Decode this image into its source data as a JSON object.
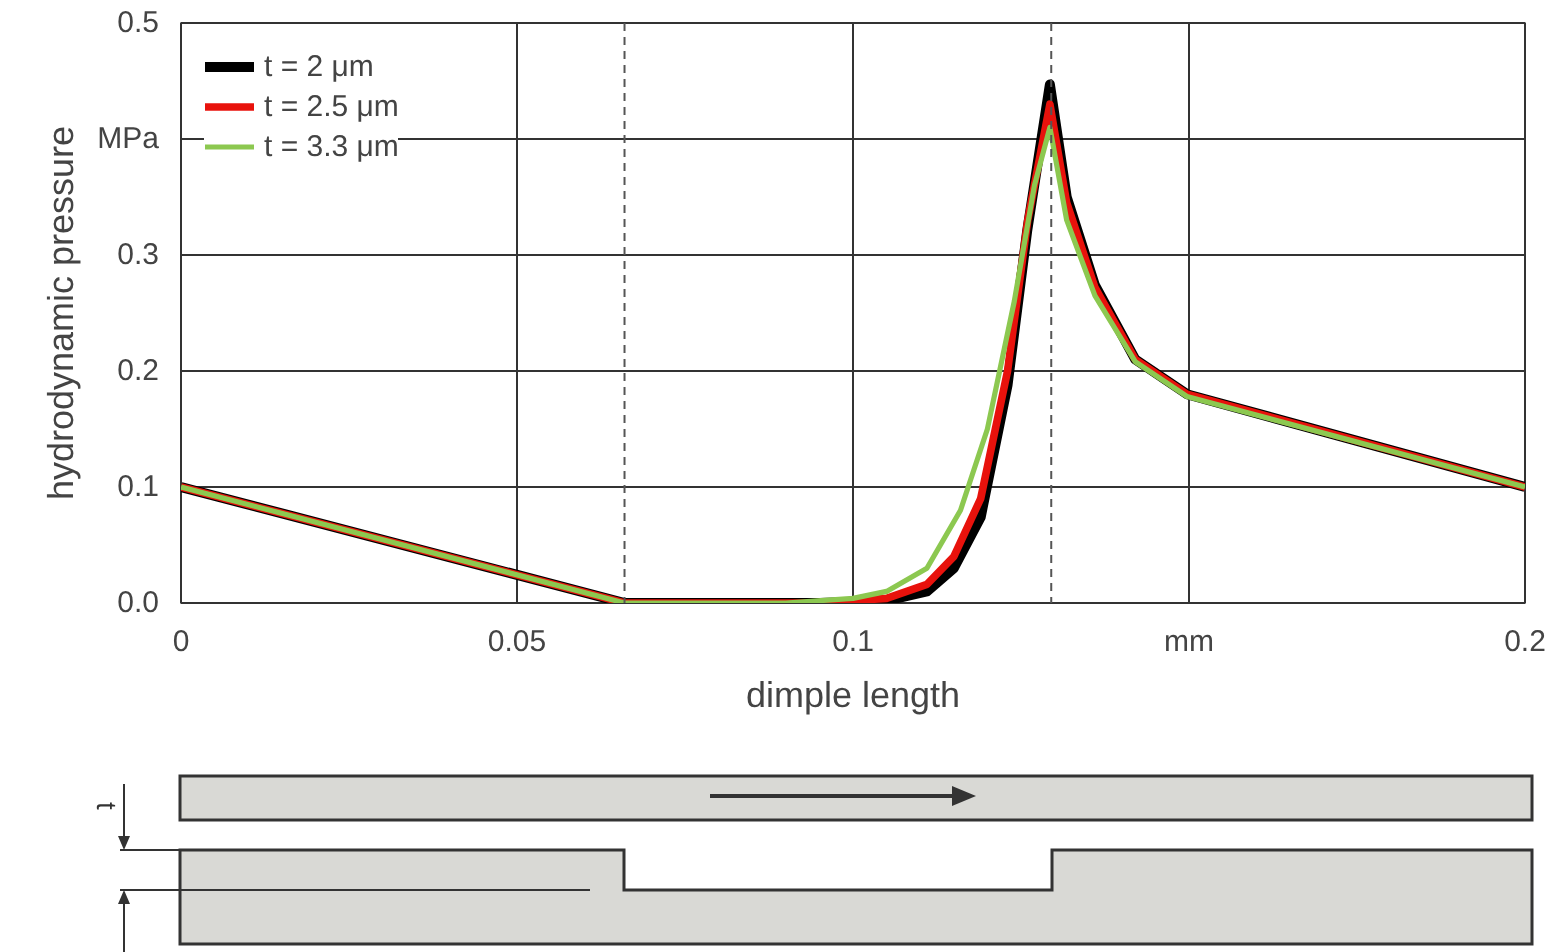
{
  "chart_data": {
    "type": "line",
    "xlabel": "dimple length",
    "ylabel": "hydrodynamic pressure",
    "xlim": [
      0,
      0.2
    ],
    "ylim": [
      0,
      0.5
    ],
    "xticks": [
      0,
      0.05,
      0.1,
      {
        "value": 0.15,
        "label": "mm"
      },
      0.2
    ],
    "yticks": [
      {
        "value": 0,
        "label": "0.0"
      },
      0.1,
      0.2,
      0.3,
      {
        "value": 0.4,
        "label": "MPa"
      },
      0.5
    ],
    "grid": true,
    "legend": "top left",
    "line_style": "solid",
    "marker": "none",
    "ref_lines": [
      {
        "axis": "x",
        "value": 0.066,
        "line_style": "dashed",
        "color": "#555555"
      },
      {
        "axis": "x",
        "value": 0.1295,
        "line_style": "dashed",
        "color": "#555555"
      }
    ],
    "annotations": [
      "t"
    ],
    "series": [
      {
        "name": "t = 2 μm",
        "color": "#000000",
        "x": [
          0,
          0.066,
          0.095,
          0.105,
          0.111,
          0.115,
          0.119,
          0.123,
          0.1259,
          0.1293,
          0.1318,
          0.136,
          0.142,
          0.1497,
          0.2
        ],
        "values": [
          0.1,
          0,
          0,
          0.002,
          0.01,
          0.03,
          0.074,
          0.188,
          0.32,
          0.447,
          0.35,
          0.274,
          0.21,
          0.18,
          0.1
        ]
      },
      {
        "name": "t = 2.5 μm",
        "color": "#e8120c",
        "x": [
          0,
          0.066,
          0.095,
          0.105,
          0.111,
          0.115,
          0.119,
          0.123,
          0.126,
          0.1293,
          0.1318,
          0.136,
          0.142,
          0.1497,
          0.2
        ],
        "values": [
          0.1,
          0,
          0,
          0.004,
          0.016,
          0.04,
          0.09,
          0.2,
          0.33,
          0.43,
          0.345,
          0.272,
          0.21,
          0.18,
          0.1
        ]
      },
      {
        "name": "t = 3.3 μm",
        "color": "#8cc850",
        "x": [
          0,
          0.066,
          0.09,
          0.1,
          0.105,
          0.111,
          0.116,
          0.12,
          0.124,
          0.127,
          0.1293,
          0.1318,
          0.136,
          0.142,
          0.1497,
          0.2
        ],
        "values": [
          0.1,
          0,
          0,
          0.004,
          0.01,
          0.03,
          0.08,
          0.15,
          0.26,
          0.36,
          0.41,
          0.33,
          0.265,
          0.208,
          0.178,
          0.1
        ]
      }
    ]
  }
}
